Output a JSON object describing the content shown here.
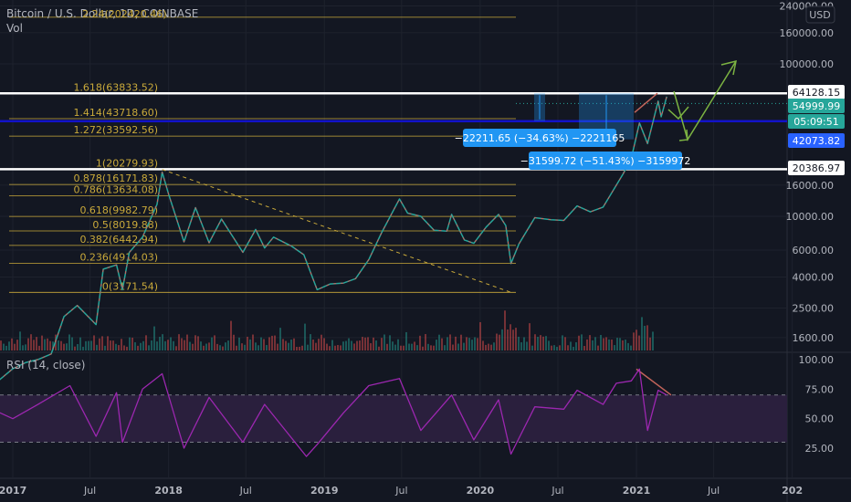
{
  "header": {
    "symbol_title": "Bitcoin / U.S. Dollar, 1D, COINBASE",
    "overlap_text": "2.24(202420.46)",
    "volume_label": "Vol"
  },
  "currency_badge": "USD",
  "colors": {
    "background": "#131722",
    "fib": "#c9a93a",
    "blue_line": "#1212c8",
    "white_line": "#ffffff",
    "rsi": "#9c27b0",
    "rsi_band": "#2a1f3d",
    "up": "#26a69a",
    "down": "#ef5350",
    "badge_blue": "#2962ff",
    "badge_green": "#26a69a",
    "measure": "#2196f3",
    "arrow_green": "#7cb342"
  },
  "chart_data": [
    {
      "type": "line",
      "title": "Bitcoin / U.S. Dollar, 1D, COINBASE",
      "y_scale": "log",
      "x_ticks": [
        "2017",
        "Jul",
        "2018",
        "Jul",
        "2019",
        "Jul",
        "2020",
        "Jul",
        "2021",
        "Jul",
        "202"
      ],
      "y_ticks": [
        240000,
        160000,
        100000,
        64128.15,
        54999.99,
        42073.82,
        20386.97,
        16000,
        10000,
        6000,
        4000,
        2500,
        1600
      ],
      "y_tick_labels": [
        "240000.00",
        "160000.00",
        "100000.00",
        "64128.15",
        "54999.99",
        "42073.82",
        "20386.97",
        "16000.00",
        "10000.00",
        "6000.00",
        "4000.00",
        "2500.00",
        "1600.00"
      ],
      "series": [
        {
          "x": [
            "2016-11-01",
            "2017-01-01",
            "2017-02-01",
            "2017-03-01",
            "2017-04-01",
            "2017-05-01",
            "2017-06-01",
            "2017-07-15",
            "2017-08-01",
            "2017-09-01",
            "2017-09-15",
            "2017-10-01",
            "2017-11-01",
            "2017-12-05",
            "2017-12-17",
            "2018-01-01",
            "2018-02-06",
            "2018-03-05",
            "2018-04-06",
            "2018-05-05",
            "2018-06-24",
            "2018-07-24",
            "2018-08-14",
            "2018-09-04",
            "2018-10-15",
            "2018-11-14",
            "2018-12-15",
            "2019-01-15",
            "2019-02-15",
            "2019-03-15",
            "2019-04-15",
            "2019-05-15",
            "2019-06-26",
            "2019-07-15",
            "2019-08-15",
            "2019-09-15",
            "2019-10-15",
            "2019-10-26",
            "2019-11-25",
            "2019-12-17",
            "2020-01-15",
            "2020-02-13",
            "2020-03-01",
            "2020-03-13",
            "2020-04-01",
            "2020-05-08",
            "2020-06-15",
            "2020-07-15",
            "2020-08-15",
            "2020-09-15",
            "2020-10-15",
            "2020-11-15",
            "2020-12-01",
            "2020-12-20",
            "2021-01-08",
            "2021-01-27",
            "2021-02-21",
            "2021-02-28",
            "2021-03-13"
          ],
          "y": [
            720,
            1000,
            1100,
            1150,
            1250,
            2200,
            2600,
            1950,
            4500,
            4800,
            3300,
            5800,
            7300,
            12000,
            19500,
            14000,
            6800,
            11400,
            6700,
            9600,
            5800,
            8200,
            6200,
            7300,
            6400,
            5600,
            3300,
            3600,
            3650,
            3900,
            5200,
            7800,
            13000,
            10500,
            10000,
            8100,
            8000,
            10300,
            7000,
            6650,
            8500,
            10300,
            8700,
            4900,
            6600,
            9800,
            9500,
            9400,
            11700,
            10700,
            11500,
            16000,
            19000,
            24000,
            41000,
            30000,
            57000,
            45000,
            61000
          ]
        }
      ],
      "fib_levels": [
        {
          "label": "1.618(63833.52)",
          "value": 63833.52
        },
        {
          "label": "1.414(43718.60)",
          "value": 43718.6
        },
        {
          "label": "1.272(33592.56)",
          "value": 33592.56
        },
        {
          "label": "1(20279.93)",
          "value": 20279.93
        },
        {
          "label": "0.878(16171.83)",
          "value": 16171.83
        },
        {
          "label": "0.786(13634.08)",
          "value": 13634.08
        },
        {
          "label": "0.618(9982.79)",
          "value": 9982.79
        },
        {
          "label": "0.5(8019.88)",
          "value": 8019.88
        },
        {
          "label": "0.382(6442.94)",
          "value": 6442.94
        },
        {
          "label": "0.236(4914.03)",
          "value": 4914.03
        },
        {
          "label": "0(3171.54)",
          "value": 3171.54
        }
      ],
      "fib_extra_level": {
        "value": 202420.46
      },
      "horizontal_lines": [
        {
          "value": 64128.15
        },
        {
          "value": 42073.82
        },
        {
          "value": 20386.97
        }
      ],
      "measurements": [
        {
          "label": "−22211.65 (−34.63%) −2221165"
        },
        {
          "label": "−31599.72 (−51.43%) −3159972"
        }
      ],
      "price_badges": [
        {
          "text": "64128.15",
          "style": "white"
        },
        {
          "text": "54999.99",
          "style": "green"
        },
        {
          "text": "05:09:51",
          "style": "green"
        },
        {
          "text": "42073.82",
          "style": "blue"
        },
        {
          "text": "20386.97",
          "style": "white"
        }
      ]
    },
    {
      "type": "line",
      "title": "RSI (14, close)",
      "y_ticks": [
        100,
        75,
        50,
        25
      ],
      "y_tick_labels": [
        "100.00",
        "75.00",
        "50.00",
        "25.00"
      ],
      "ylim": [
        0,
        100
      ],
      "band": [
        30,
        70
      ],
      "series": [
        {
          "x": [
            "2016-11-01",
            "2017-01-01",
            "2017-03-01",
            "2017-05-15",
            "2017-07-15",
            "2017-09-01",
            "2017-09-15",
            "2017-11-01",
            "2017-12-17",
            "2018-02-06",
            "2018-04-06",
            "2018-06-24",
            "2018-08-14",
            "2018-11-20",
            "2018-12-15",
            "2019-02-15",
            "2019-04-15",
            "2019-06-26",
            "2019-08-15",
            "2019-10-26",
            "2019-12-17",
            "2020-02-13",
            "2020-03-13",
            "2020-05-08",
            "2020-07-15",
            "2020-08-15",
            "2020-10-15",
            "2020-11-15",
            "2020-12-20",
            "2021-01-08",
            "2021-01-27",
            "2021-02-21",
            "2021-03-13"
          ],
          "y": [
            60,
            50,
            62,
            78,
            35,
            72,
            30,
            75,
            88,
            25,
            68,
            30,
            62,
            18,
            28,
            55,
            78,
            84,
            40,
            70,
            32,
            66,
            20,
            60,
            58,
            74,
            62,
            80,
            82,
            92,
            40,
            74,
            70
          ]
        }
      ]
    }
  ]
}
